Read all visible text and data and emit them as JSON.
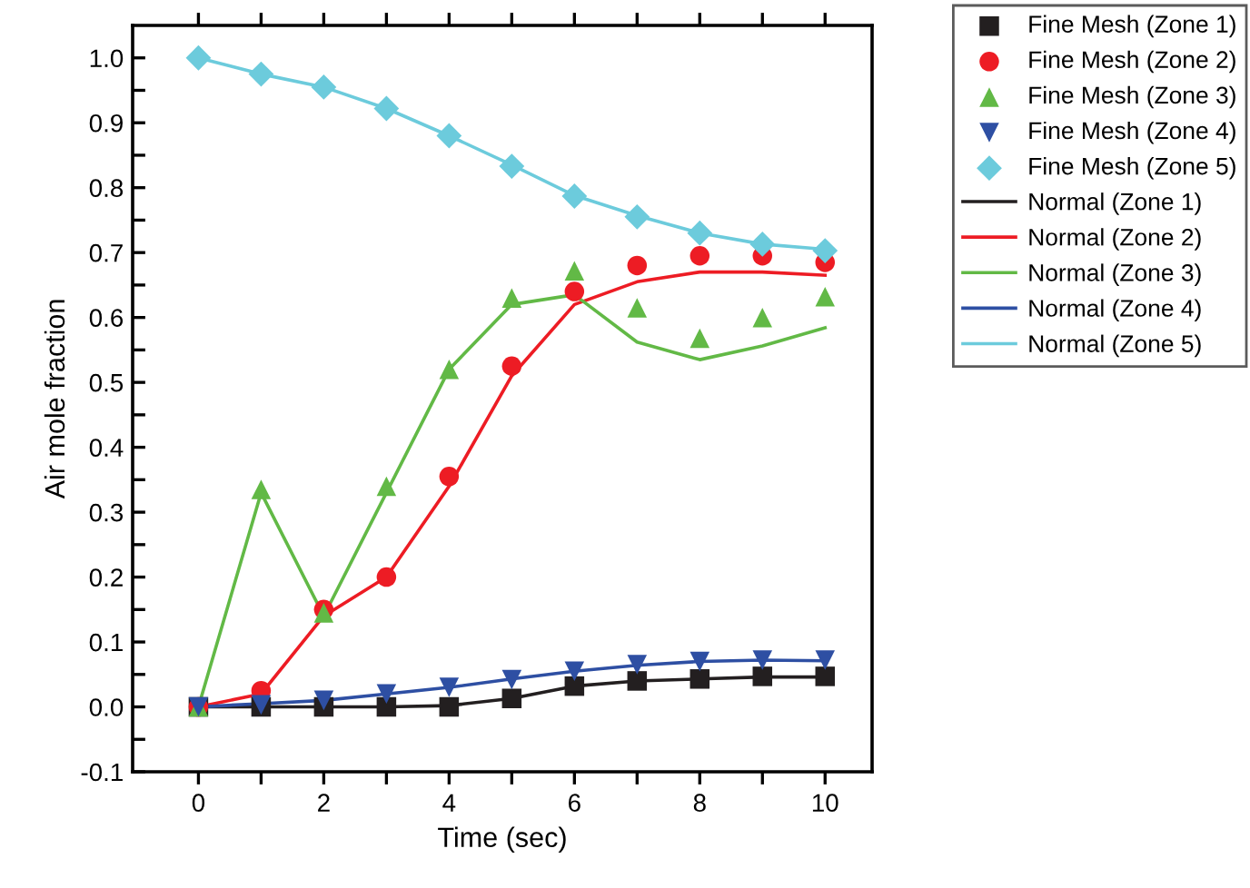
{
  "chart_data": {
    "type": "line",
    "xlabel": "Time (sec)",
    "ylabel": "Air mole fraction",
    "x": [
      0,
      1,
      2,
      3,
      4,
      5,
      6,
      7,
      8,
      9,
      10
    ],
    "xlim": [
      -1.05,
      10.75
    ],
    "ylim": [
      -0.1,
      1.05
    ],
    "xticks": [
      0,
      {
        "value": 1,
        "label": null
      },
      2,
      {
        "value": 3,
        "label": null
      },
      4,
      {
        "value": 5,
        "label": null
      },
      6,
      {
        "value": 7,
        "label": null
      },
      8,
      {
        "value": 9,
        "label": null
      },
      10
    ],
    "yticks": [
      {
        "value": -0.1,
        "label": "-0.1"
      },
      {
        "value": -0.05,
        "label": null
      },
      {
        "value": 0,
        "label": "0.0"
      },
      {
        "value": 0.05,
        "label": null
      },
      {
        "value": 0.1,
        "label": "0.1"
      },
      {
        "value": 0.15,
        "label": null
      },
      {
        "value": 0.2,
        "label": "0.2"
      },
      {
        "value": 0.25,
        "label": null
      },
      {
        "value": 0.3,
        "label": "0.3"
      },
      {
        "value": 0.35,
        "label": null
      },
      {
        "value": 0.4,
        "label": "0.4"
      },
      {
        "value": 0.45,
        "label": null
      },
      {
        "value": 0.5,
        "label": "0.5"
      },
      {
        "value": 0.55,
        "label": null
      },
      {
        "value": 0.6,
        "label": "0.6"
      },
      {
        "value": 0.65,
        "label": null
      },
      {
        "value": 0.7,
        "label": "0.7"
      },
      {
        "value": 0.75,
        "label": null
      },
      {
        "value": 0.8,
        "label": "0.8"
      },
      {
        "value": 0.85,
        "label": null
      },
      {
        "value": 0.9,
        "label": "0.9"
      },
      {
        "value": 0.95,
        "label": null
      },
      {
        "value": 1.0,
        "label": "1.0"
      }
    ],
    "grid": false,
    "legend": "right",
    "series": [
      {
        "name": "Fine Mesh (Zone 1)",
        "type": "scatter",
        "marker": "square",
        "color": "#231f20",
        "values": [
          0,
          0,
          0,
          0,
          0,
          0.013,
          0.032,
          0.04,
          0.043,
          0.047,
          0.047
        ]
      },
      {
        "name": "Fine Mesh (Zone 2)",
        "type": "scatter",
        "marker": "circle",
        "color": "#ed1c24",
        "values": [
          0,
          0.025,
          0.15,
          0.2,
          0.355,
          0.525,
          0.64,
          0.68,
          0.695,
          0.695,
          0.685
        ]
      },
      {
        "name": "Fine Mesh (Zone 3)",
        "type": "scatter",
        "marker": "triangle",
        "color": "#62b946",
        "values": [
          0,
          0.335,
          0.145,
          0.34,
          0.52,
          0.63,
          0.672,
          0.615,
          0.568,
          0.6,
          0.632
        ]
      },
      {
        "name": "Fine Mesh (Zone 4)",
        "type": "scatter",
        "marker": "triangle_down",
        "color": "#2e4fa3",
        "values": [
          0,
          0.003,
          0.01,
          0.02,
          0.03,
          0.042,
          0.055,
          0.065,
          0.07,
          0.072,
          0.072
        ]
      },
      {
        "name": "Fine Mesh (Zone 5)",
        "type": "scatter",
        "marker": "diamond",
        "color": "#6ccbdc",
        "values": [
          1.0,
          0.975,
          0.955,
          0.922,
          0.88,
          0.833,
          0.787,
          0.755,
          0.73,
          0.713,
          0.703
        ]
      },
      {
        "name": "Normal (Zone 1)",
        "color": "#231f20",
        "values": [
          0,
          0,
          0,
          0,
          0.002,
          0.013,
          0.032,
          0.04,
          0.043,
          0.046,
          0.046
        ]
      },
      {
        "name": "Normal (Zone 2)",
        "color": "#ed1c24",
        "values": [
          0,
          0.02,
          0.14,
          0.2,
          0.34,
          0.51,
          0.62,
          0.655,
          0.67,
          0.67,
          0.665
        ]
      },
      {
        "name": "Normal (Zone 3)",
        "color": "#62b946",
        "values": [
          0,
          0.33,
          0.14,
          0.33,
          0.52,
          0.62,
          0.635,
          0.562,
          0.535,
          0.556,
          0.584
        ]
      },
      {
        "name": "Normal (Zone 4)",
        "color": "#2e4fa3",
        "values": [
          0,
          0.005,
          0.01,
          0.02,
          0.03,
          0.043,
          0.055,
          0.064,
          0.07,
          0.072,
          0.071
        ]
      },
      {
        "name": "Normal (Zone 5)",
        "color": "#6ccbdc",
        "values": [
          1.0,
          0.975,
          0.955,
          0.922,
          0.88,
          0.835,
          0.788,
          0.757,
          0.73,
          0.713,
          0.705
        ]
      }
    ]
  }
}
